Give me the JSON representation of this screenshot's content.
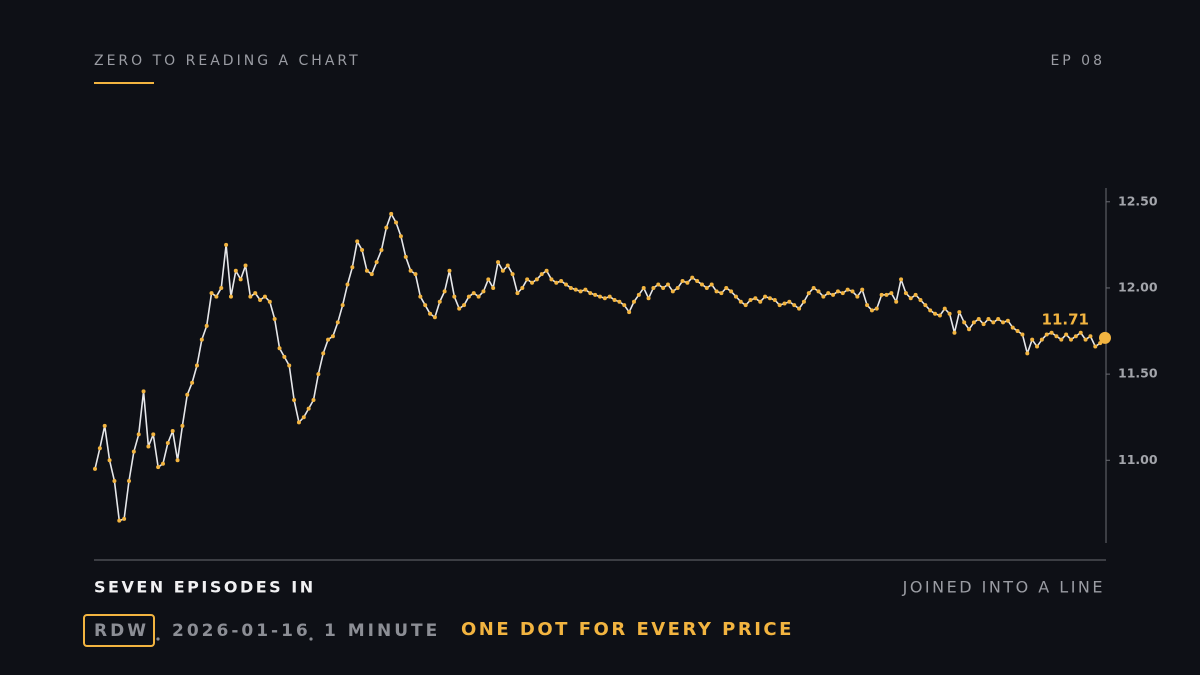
{
  "chart_data": {
    "type": "line",
    "title": "ZERO TO READING A CHART",
    "episode": "EP 08",
    "caption_left": "SEVEN EPISODES IN",
    "caption_right": "JOINED INTO A LINE",
    "ticker": "RDW",
    "date": "2026-01-16",
    "interval": "1 MINUTE",
    "note": "ONE DOT FOR EVERY PRICE",
    "line_color": "#e6e7ea",
    "color": "#f2b440",
    "ylim": [
      10.52,
      12.58
    ],
    "yticks": [
      {
        "value": 11,
        "label": "11.00"
      },
      {
        "value": 11.5,
        "label": "11.50"
      },
      {
        "value": 12,
        "label": "12.00"
      },
      {
        "value": 12.5,
        "label": "12.50"
      }
    ],
    "values": [
      10.95,
      11.07,
      11.2,
      11.0,
      10.88,
      10.65,
      10.66,
      10.88,
      11.05,
      11.15,
      11.4,
      11.08,
      11.15,
      10.96,
      10.98,
      11.1,
      11.17,
      11.0,
      11.2,
      11.38,
      11.45,
      11.55,
      11.7,
      11.78,
      11.97,
      11.95,
      12.0,
      12.25,
      11.95,
      12.1,
      12.05,
      12.13,
      11.95,
      11.97,
      11.93,
      11.95,
      11.92,
      11.82,
      11.65,
      11.6,
      11.55,
      11.35,
      11.22,
      11.25,
      11.3,
      11.35,
      11.5,
      11.62,
      11.7,
      11.72,
      11.8,
      11.9,
      12.02,
      12.12,
      12.27,
      12.22,
      12.1,
      12.08,
      12.15,
      12.22,
      12.35,
      12.43,
      12.38,
      12.3,
      12.18,
      12.1,
      12.08,
      11.95,
      11.9,
      11.85,
      11.83,
      11.92,
      11.98,
      12.1,
      11.95,
      11.88,
      11.9,
      11.95,
      11.97,
      11.95,
      11.98,
      12.05,
      12.0,
      12.15,
      12.1,
      12.13,
      12.08,
      11.97,
      12.0,
      12.05,
      12.03,
      12.05,
      12.08,
      12.1,
      12.05,
      12.03,
      12.04,
      12.02,
      12.0,
      11.99,
      11.98,
      11.99,
      11.97,
      11.96,
      11.95,
      11.94,
      11.95,
      11.93,
      11.92,
      11.9,
      11.86,
      11.92,
      11.96,
      12.0,
      11.94,
      12.0,
      12.02,
      12.0,
      12.02,
      11.98,
      12.0,
      12.04,
      12.03,
      12.06,
      12.04,
      12.02,
      12.0,
      12.02,
      11.98,
      11.97,
      12.0,
      11.98,
      11.95,
      11.92,
      11.9,
      11.93,
      11.94,
      11.92,
      11.95,
      11.94,
      11.93,
      11.9,
      11.91,
      11.92,
      11.9,
      11.88,
      11.92,
      11.97,
      12.0,
      11.98,
      11.95,
      11.97,
      11.96,
      11.98,
      11.97,
      11.99,
      11.98,
      11.95,
      11.99,
      11.9,
      11.87,
      11.88,
      11.96,
      11.96,
      11.97,
      11.92,
      12.05,
      11.97,
      11.94,
      11.96,
      11.93,
      11.9,
      11.87,
      11.85,
      11.84,
      11.88,
      11.85,
      11.74,
      11.86,
      11.8,
      11.76,
      11.8,
      11.82,
      11.79,
      11.82,
      11.8,
      11.82,
      11.8,
      11.81,
      11.77,
      11.75,
      11.73,
      11.62,
      11.7,
      11.66,
      11.7,
      11.73,
      11.74,
      11.72,
      11.7,
      11.73,
      11.7,
      11.72,
      11.74,
      11.7,
      11.72,
      11.66,
      11.68,
      11.71
    ]
  }
}
